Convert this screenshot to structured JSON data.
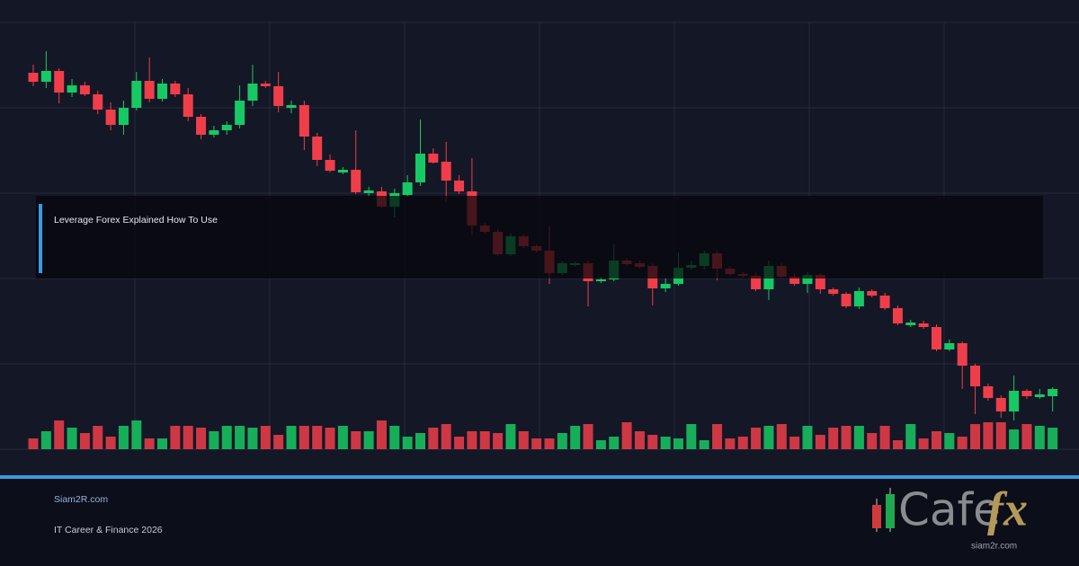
{
  "chart_data": {
    "type": "candlestick",
    "title": "Leverage Forex Explained How To Use",
    "up_color": "#17c964",
    "down_color": "#ef3e4a",
    "grid": true,
    "ylim": [
      0,
      475
    ],
    "yticks": [
      0,
      95,
      190,
      285,
      380,
      475
    ],
    "volume_lim": [
      0,
      100
    ],
    "open": [
      419,
      409,
      421,
      397,
      405,
      395,
      378,
      361,
      380,
      410,
      390,
      407,
      395,
      370,
      350,
      355,
      361,
      388,
      407,
      404,
      380,
      383,
      348,
      322,
      308,
      311,
      285,
      287,
      270,
      283,
      297,
      329,
      320,
      299,
      287,
      249,
      242,
      217,
      237,
      226,
      221,
      196,
      205,
      207,
      187,
      189,
      210,
      207,
      204,
      179,
      184,
      202,
      204,
      218,
      201,
      195,
      193,
      178,
      204,
      192,
      184,
      194,
      178,
      173,
      159,
      176,
      171,
      157,
      138,
      140,
      136,
      111,
      118,
      93,
      70,
      57,
      42,
      65,
      58,
      59
    ],
    "high": [
      428,
      443,
      424,
      412,
      409,
      399,
      386,
      388,
      420,
      436,
      412,
      410,
      402,
      373,
      360,
      365,
      405,
      428,
      410,
      420,
      388,
      388,
      352,
      328,
      314,
      355,
      292,
      292,
      290,
      305,
      367,
      335,
      342,
      305,
      324,
      252,
      245,
      240,
      239,
      228,
      248,
      209,
      209,
      210,
      192,
      228,
      212,
      210,
      207,
      190,
      219,
      210,
      221,
      221,
      204,
      197,
      197,
      210,
      207,
      196,
      197,
      196,
      180,
      175,
      180,
      178,
      174,
      160,
      144,
      143,
      139,
      122,
      120,
      95,
      73,
      60,
      82,
      67,
      67,
      69
    ],
    "low": [
      404,
      402,
      385,
      392,
      393,
      373,
      355,
      350,
      377,
      386,
      387,
      392,
      365,
      345,
      347,
      350,
      357,
      382,
      402,
      375,
      374,
      333,
      315,
      308,
      306,
      284,
      282,
      268,
      258,
      281,
      293,
      318,
      275,
      284,
      238,
      240,
      215,
      215,
      224,
      219,
      184,
      194,
      203,
      159,
      185,
      187,
      204,
      201,
      160,
      175,
      182,
      200,
      200,
      188,
      193,
      191,
      176,
      166,
      190,
      182,
      174,
      173,
      171,
      157,
      156,
      169,
      155,
      138,
      136,
      134,
      109,
      109,
      67,
      39,
      54,
      35,
      32,
      56,
      56,
      42
    ],
    "close": [
      409,
      421,
      397,
      405,
      395,
      378,
      361,
      380,
      410,
      390,
      407,
      395,
      370,
      350,
      355,
      361,
      388,
      407,
      404,
      382,
      383,
      348,
      322,
      310,
      311,
      286,
      288,
      270,
      285,
      297,
      329,
      319,
      299,
      287,
      249,
      242,
      217,
      237,
      226,
      221,
      196,
      207,
      207,
      187,
      189,
      210,
      206,
      203,
      179,
      184,
      202,
      205,
      218,
      201,
      195,
      193,
      178,
      204,
      192,
      184,
      194,
      178,
      173,
      159,
      176,
      171,
      157,
      140,
      141,
      136,
      111,
      118,
      93,
      70,
      57,
      42,
      65,
      59,
      61,
      67
    ],
    "volume": [
      12,
      20,
      32,
      24,
      18,
      26,
      14,
      26,
      32,
      12,
      12,
      26,
      26,
      24,
      20,
      26,
      26,
      24,
      26,
      16,
      26,
      26,
      26,
      24,
      26,
      20,
      20,
      32,
      26,
      14,
      18,
      24,
      28,
      14,
      20,
      20,
      18,
      28,
      20,
      12,
      12,
      18,
      26,
      28,
      10,
      14,
      30,
      20,
      16,
      14,
      12,
      28,
      10,
      28,
      12,
      14,
      24,
      26,
      28,
      14,
      26,
      16,
      24,
      26,
      26,
      18,
      26,
      10,
      28,
      12,
      20,
      18,
      14,
      28,
      30,
      30,
      22,
      28,
      26,
      24
    ]
  },
  "footer": {
    "site": "Siam2R.com",
    "tagline": "IT Career & Finance 2026"
  },
  "logo": {
    "word": "Cafe",
    "accent": "fx",
    "url": "siam2r.com"
  }
}
